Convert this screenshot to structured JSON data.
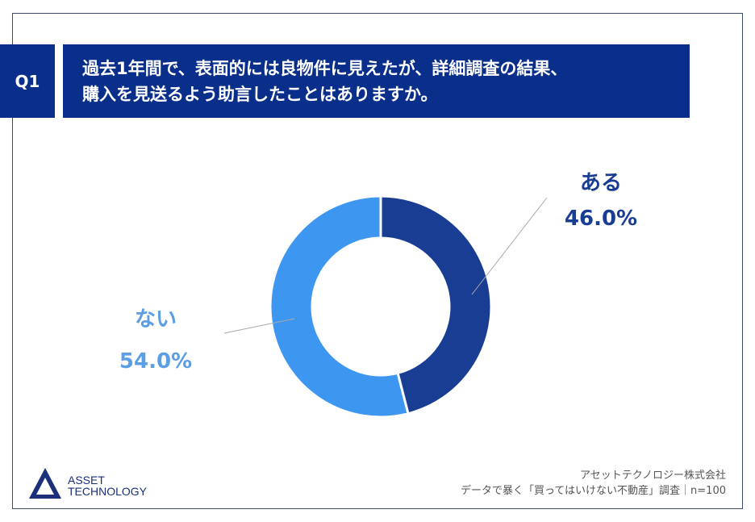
{
  "question": {
    "number": "Q1",
    "line1": "過去1年間で、表面的には良物件に見えたが、詳細調査の結果、",
    "line2": "購入を見送るよう助言したことはありますか。"
  },
  "chart_data": {
    "type": "pie",
    "donut": true,
    "categories": [
      "ある",
      "ない"
    ],
    "values": [
      46.0,
      54.0
    ],
    "labels": [
      "46.0%",
      "54.0%"
    ],
    "colors": [
      "#1a3d94",
      "#3d97f0"
    ],
    "start": "12 o'clock clockwise"
  },
  "footer": {
    "company": "アセットテクノロジー株式会社",
    "survey": "データで暴く「買ってはいけない不動産」調査｜n=100"
  },
  "logo": {
    "line1": "ASSET",
    "line2": "TECHNOLOGY"
  }
}
